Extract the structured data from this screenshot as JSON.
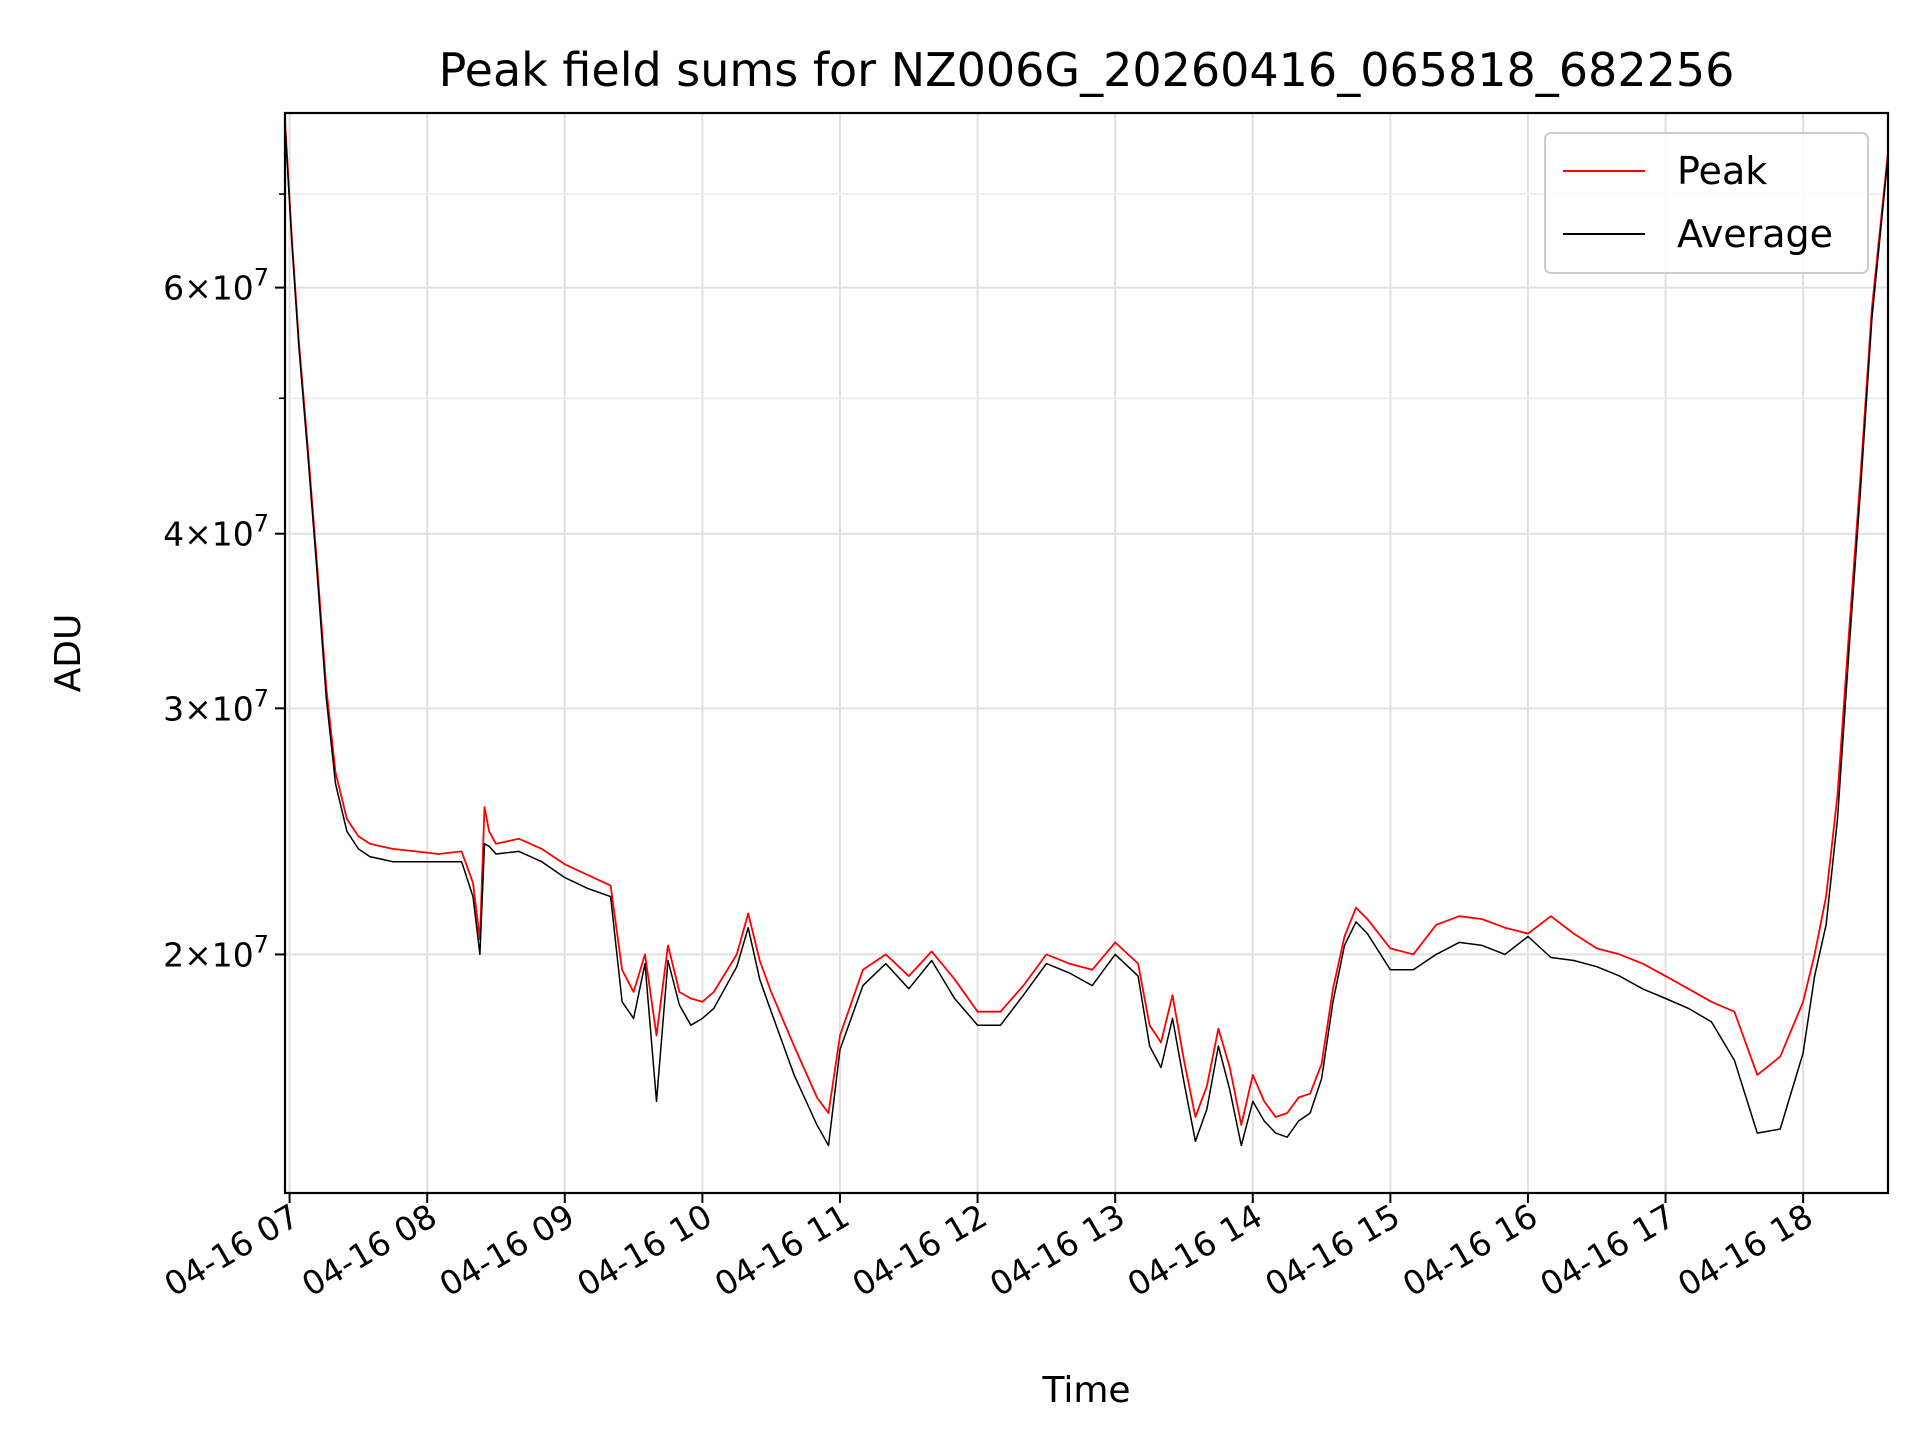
{
  "chart_data": {
    "type": "line",
    "title": "Peak field sums for NZ006G_20260416_065818_682256",
    "xlabel": "Time",
    "ylabel": "ADU",
    "y_scale": "log",
    "ylim": [
      13500000,
      80000000
    ],
    "xlim": [
      "2026-04-16 06:58",
      "2026-04-16 18:37"
    ],
    "grid": true,
    "legend_position": "top-right",
    "x_ticks": [
      {
        "value": "2026-04-16 07:00",
        "label": "04-16 07"
      },
      {
        "value": "2026-04-16 08:00",
        "label": "04-16 08"
      },
      {
        "value": "2026-04-16 09:00",
        "label": "04-16 09"
      },
      {
        "value": "2026-04-16 10:00",
        "label": "04-16 10"
      },
      {
        "value": "2026-04-16 11:00",
        "label": "04-16 11"
      },
      {
        "value": "2026-04-16 12:00",
        "label": "04-16 12"
      },
      {
        "value": "2026-04-16 13:00",
        "label": "04-16 13"
      },
      {
        "value": "2026-04-16 14:00",
        "label": "04-16 14"
      },
      {
        "value": "2026-04-16 15:00",
        "label": "04-16 15"
      },
      {
        "value": "2026-04-16 16:00",
        "label": "04-16 16"
      },
      {
        "value": "2026-04-16 17:00",
        "label": "04-16 17"
      },
      {
        "value": "2026-04-16 18:00",
        "label": "04-16 18"
      }
    ],
    "y_ticks": [
      {
        "value": 20000000,
        "mantissa": "2",
        "exponent": "7"
      },
      {
        "value": 30000000,
        "mantissa": "3",
        "exponent": "7"
      },
      {
        "value": 40000000,
        "mantissa": "4",
        "exponent": "7"
      },
      {
        "value": 60000000,
        "mantissa": "6",
        "exponent": "7"
      }
    ],
    "y_minor_ticks": [
      50000000,
      70000000
    ],
    "series": [
      {
        "name": "Peak",
        "color": "#ff0000",
        "x": [
          "2026-04-16 06:58",
          "2026-04-16 07:01",
          "2026-04-16 07:04",
          "2026-04-16 07:08",
          "2026-04-16 07:12",
          "2026-04-16 07:16",
          "2026-04-16 07:20",
          "2026-04-16 07:25",
          "2026-04-16 07:30",
          "2026-04-16 07:35",
          "2026-04-16 07:45",
          "2026-04-16 07:55",
          "2026-04-16 08:05",
          "2026-04-16 08:15",
          "2026-04-16 08:20",
          "2026-04-16 08:23",
          "2026-04-16 08:25",
          "2026-04-16 08:27",
          "2026-04-16 08:30",
          "2026-04-16 08:40",
          "2026-04-16 08:50",
          "2026-04-16 09:00",
          "2026-04-16 09:10",
          "2026-04-16 09:20",
          "2026-04-16 09:25",
          "2026-04-16 09:30",
          "2026-04-16 09:35",
          "2026-04-16 09:40",
          "2026-04-16 09:45",
          "2026-04-16 09:50",
          "2026-04-16 09:55",
          "2026-04-16 10:00",
          "2026-04-16 10:05",
          "2026-04-16 10:15",
          "2026-04-16 10:20",
          "2026-04-16 10:25",
          "2026-04-16 10:30",
          "2026-04-16 10:40",
          "2026-04-16 10:50",
          "2026-04-16 10:55",
          "2026-04-16 11:00",
          "2026-04-16 11:10",
          "2026-04-16 11:20",
          "2026-04-16 11:30",
          "2026-04-16 11:40",
          "2026-04-16 11:50",
          "2026-04-16 12:00",
          "2026-04-16 12:10",
          "2026-04-16 12:20",
          "2026-04-16 12:30",
          "2026-04-16 12:40",
          "2026-04-16 12:50",
          "2026-04-16 13:00",
          "2026-04-16 13:10",
          "2026-04-16 13:15",
          "2026-04-16 13:20",
          "2026-04-16 13:25",
          "2026-04-16 13:30",
          "2026-04-16 13:35",
          "2026-04-16 13:40",
          "2026-04-16 13:45",
          "2026-04-16 13:50",
          "2026-04-16 13:55",
          "2026-04-16 14:00",
          "2026-04-16 14:05",
          "2026-04-16 14:10",
          "2026-04-16 14:15",
          "2026-04-16 14:20",
          "2026-04-16 14:25",
          "2026-04-16 14:30",
          "2026-04-16 14:35",
          "2026-04-16 14:40",
          "2026-04-16 14:45",
          "2026-04-16 14:50",
          "2026-04-16 15:00",
          "2026-04-16 15:10",
          "2026-04-16 15:20",
          "2026-04-16 15:30",
          "2026-04-16 15:40",
          "2026-04-16 15:50",
          "2026-04-16 16:00",
          "2026-04-16 16:10",
          "2026-04-16 16:20",
          "2026-04-16 16:30",
          "2026-04-16 16:40",
          "2026-04-16 16:50",
          "2026-04-16 17:00",
          "2026-04-16 17:10",
          "2026-04-16 17:20",
          "2026-04-16 17:30",
          "2026-04-16 17:40",
          "2026-04-16 17:50",
          "2026-04-16 18:00",
          "2026-04-16 18:05",
          "2026-04-16 18:10",
          "2026-04-16 18:15",
          "2026-04-16 18:20",
          "2026-04-16 18:25",
          "2026-04-16 18:30",
          "2026-04-16 18:37"
        ],
        "y": [
          79000000,
          65000000,
          55000000,
          46000000,
          38000000,
          31000000,
          27000000,
          25000000,
          24300000,
          24000000,
          23800000,
          23700000,
          23600000,
          23700000,
          22500000,
          20500000,
          25500000,
          24500000,
          24000000,
          24200000,
          23800000,
          23200000,
          22800000,
          22400000,
          19500000,
          18800000,
          20000000,
          17500000,
          20300000,
          18800000,
          18600000,
          18500000,
          18800000,
          20000000,
          21400000,
          19800000,
          18800000,
          17200000,
          15800000,
          15400000,
          17500000,
          19500000,
          20000000,
          19300000,
          20100000,
          19200000,
          18200000,
          18200000,
          19000000,
          20000000,
          19700000,
          19500000,
          20400000,
          19700000,
          17800000,
          17300000,
          18700000,
          16800000,
          15300000,
          16100000,
          17700000,
          16600000,
          15100000,
          16400000,
          15700000,
          15300000,
          15400000,
          15800000,
          15900000,
          16700000,
          18900000,
          20600000,
          21600000,
          21200000,
          20200000,
          20000000,
          21000000,
          21300000,
          21200000,
          20900000,
          20700000,
          21300000,
          20700000,
          20200000,
          20000000,
          19700000,
          19300000,
          18900000,
          18500000,
          18200000,
          16400000,
          16900000,
          18500000,
          20000000,
          22000000,
          26000000,
          34000000,
          44000000,
          58000000,
          75000000
        ]
      },
      {
        "name": "Average",
        "color": "#000000",
        "x": [
          "2026-04-16 06:58",
          "2026-04-16 07:01",
          "2026-04-16 07:04",
          "2026-04-16 07:08",
          "2026-04-16 07:12",
          "2026-04-16 07:16",
          "2026-04-16 07:20",
          "2026-04-16 07:25",
          "2026-04-16 07:30",
          "2026-04-16 07:35",
          "2026-04-16 07:45",
          "2026-04-16 07:55",
          "2026-04-16 08:05",
          "2026-04-16 08:15",
          "2026-04-16 08:20",
          "2026-04-16 08:23",
          "2026-04-16 08:25",
          "2026-04-16 08:27",
          "2026-04-16 08:30",
          "2026-04-16 08:40",
          "2026-04-16 08:50",
          "2026-04-16 09:00",
          "2026-04-16 09:10",
          "2026-04-16 09:20",
          "2026-04-16 09:25",
          "2026-04-16 09:30",
          "2026-04-16 09:35",
          "2026-04-16 09:40",
          "2026-04-16 09:45",
          "2026-04-16 09:50",
          "2026-04-16 09:55",
          "2026-04-16 10:00",
          "2026-04-16 10:05",
          "2026-04-16 10:15",
          "2026-04-16 10:20",
          "2026-04-16 10:25",
          "2026-04-16 10:30",
          "2026-04-16 10:40",
          "2026-04-16 10:50",
          "2026-04-16 10:55",
          "2026-04-16 11:00",
          "2026-04-16 11:10",
          "2026-04-16 11:20",
          "2026-04-16 11:30",
          "2026-04-16 11:40",
          "2026-04-16 11:50",
          "2026-04-16 12:00",
          "2026-04-16 12:10",
          "2026-04-16 12:20",
          "2026-04-16 12:30",
          "2026-04-16 12:40",
          "2026-04-16 12:50",
          "2026-04-16 13:00",
          "2026-04-16 13:10",
          "2026-04-16 13:15",
          "2026-04-16 13:20",
          "2026-04-16 13:25",
          "2026-04-16 13:30",
          "2026-04-16 13:35",
          "2026-04-16 13:40",
          "2026-04-16 13:45",
          "2026-04-16 13:50",
          "2026-04-16 13:55",
          "2026-04-16 14:00",
          "2026-04-16 14:05",
          "2026-04-16 14:10",
          "2026-04-16 14:15",
          "2026-04-16 14:20",
          "2026-04-16 14:25",
          "2026-04-16 14:30",
          "2026-04-16 14:35",
          "2026-04-16 14:40",
          "2026-04-16 14:45",
          "2026-04-16 14:50",
          "2026-04-16 15:00",
          "2026-04-16 15:10",
          "2026-04-16 15:20",
          "2026-04-16 15:30",
          "2026-04-16 15:40",
          "2026-04-16 15:50",
          "2026-04-16 16:00",
          "2026-04-16 16:10",
          "2026-04-16 16:20",
          "2026-04-16 16:30",
          "2026-04-16 16:40",
          "2026-04-16 16:50",
          "2026-04-16 17:00",
          "2026-04-16 17:10",
          "2026-04-16 17:20",
          "2026-04-16 17:30",
          "2026-04-16 17:40",
          "2026-04-16 17:50",
          "2026-04-16 18:00",
          "2026-04-16 18:05",
          "2026-04-16 18:10",
          "2026-04-16 18:15",
          "2026-04-16 18:20",
          "2026-04-16 18:25",
          "2026-04-16 18:30",
          "2026-04-16 18:37"
        ],
        "y": [
          78500000,
          64500000,
          54500000,
          45500000,
          37500000,
          30500000,
          26500000,
          24500000,
          23800000,
          23500000,
          23300000,
          23300000,
          23300000,
          23300000,
          22000000,
          20000000,
          24000000,
          23900000,
          23600000,
          23700000,
          23300000,
          22700000,
          22300000,
          22000000,
          18500000,
          18000000,
          19700000,
          15700000,
          19800000,
          18400000,
          17800000,
          18000000,
          18300000,
          19600000,
          20900000,
          19200000,
          18200000,
          16400000,
          15100000,
          14600000,
          17100000,
          19000000,
          19700000,
          18900000,
          19800000,
          18600000,
          17800000,
          17800000,
          18700000,
          19700000,
          19400000,
          19000000,
          20000000,
          19300000,
          17200000,
          16600000,
          18000000,
          16200000,
          14700000,
          15500000,
          17200000,
          16000000,
          14600000,
          15700000,
          15200000,
          14900000,
          14800000,
          15200000,
          15400000,
          16300000,
          18500000,
          20300000,
          21100000,
          20700000,
          19500000,
          19500000,
          20000000,
          20400000,
          20300000,
          20000000,
          20600000,
          19900000,
          19800000,
          19600000,
          19300000,
          18900000,
          18600000,
          18300000,
          17900000,
          16800000,
          14900000,
          15000000,
          17000000,
          19300000,
          21000000,
          25000000,
          33000000,
          43000000,
          57000000,
          74500000
        ]
      }
    ]
  }
}
